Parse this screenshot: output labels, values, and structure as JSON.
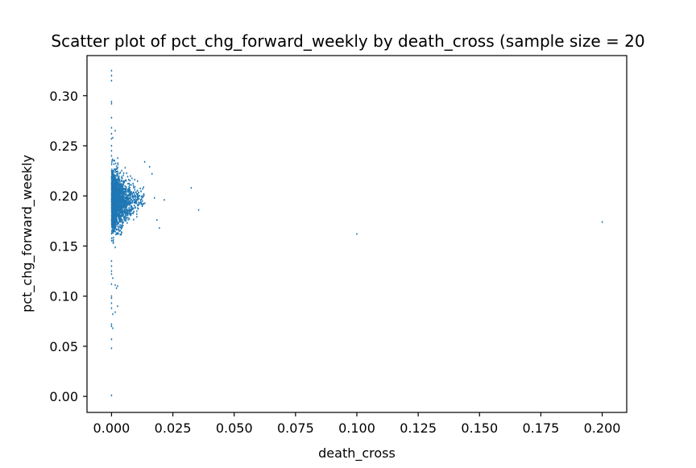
{
  "chart_data": {
    "type": "scatter",
    "title": "Scatter plot of pct_chg_forward_weekly by death_cross (sample size = 20",
    "xlabel": "death_cross",
    "ylabel": "pct_chg_forward_weekly",
    "xlim": [
      -0.01,
      0.21
    ],
    "ylim": [
      -0.016,
      0.34
    ],
    "x_ticks": [
      0.0,
      0.025,
      0.05,
      0.075,
      0.1,
      0.125,
      0.15,
      0.175,
      0.2
    ],
    "x_tick_labels": [
      "0.000",
      "0.025",
      "0.050",
      "0.075",
      "0.100",
      "0.125",
      "0.150",
      "0.175",
      "0.200"
    ],
    "y_ticks": [
      0.0,
      0.05,
      0.1,
      0.15,
      0.2,
      0.25,
      0.3
    ],
    "y_tick_labels": [
      "0.00",
      "0.05",
      "0.10",
      "0.15",
      "0.20",
      "0.25",
      "0.30"
    ],
    "grid": false,
    "marker_color": "#1f77b4",
    "series": [
      {
        "outliers": [
          [
            0.0,
            0.325
          ],
          [
            0.0,
            0.32
          ],
          [
            0.0,
            0.315
          ],
          [
            0.0,
            0.294
          ],
          [
            0.0,
            0.292
          ],
          [
            0.0,
            0.278
          ],
          [
            0.0,
            0.268
          ],
          [
            0.0,
            0.262
          ],
          [
            0.0,
            0.257
          ],
          [
            0.0,
            0.25
          ],
          [
            0.0,
            0.245
          ],
          [
            0.0,
            0.24
          ],
          [
            0.0015,
            0.265
          ],
          [
            0.0005,
            0.258
          ],
          [
            0.0,
            0.135
          ],
          [
            0.0,
            0.13
          ],
          [
            0.0,
            0.125
          ],
          [
            0.0,
            0.122
          ],
          [
            0.0005,
            0.118
          ],
          [
            0.0,
            0.112
          ],
          [
            0.0015,
            0.111
          ],
          [
            0.002,
            0.108
          ],
          [
            0.0025,
            0.11
          ],
          [
            0.0,
            0.1
          ],
          [
            0.0,
            0.098
          ],
          [
            0.0,
            0.093
          ],
          [
            0.0,
            0.088
          ],
          [
            0.0025,
            0.09
          ],
          [
            0.0015,
            0.084
          ],
          [
            0.0005,
            0.082
          ],
          [
            0.0,
            0.072
          ],
          [
            0.0,
            0.07
          ],
          [
            0.0005,
            0.068
          ],
          [
            0.0,
            0.057
          ],
          [
            0.0,
            0.048
          ],
          [
            0.0,
            0.001
          ],
          [
            0.0135,
            0.234
          ],
          [
            0.0155,
            0.229
          ],
          [
            0.0165,
            0.222
          ],
          [
            0.0175,
            0.198
          ],
          [
            0.0185,
            0.176
          ],
          [
            0.0195,
            0.168
          ],
          [
            0.0215,
            0.196
          ],
          [
            0.0325,
            0.208
          ],
          [
            0.0355,
            0.186
          ],
          [
            0.1,
            0.162
          ],
          [
            0.2,
            0.174
          ]
        ],
        "cluster": {
          "x_range": [
            0.0,
            0.014
          ],
          "y_center": 0.195,
          "y_spread": 0.028,
          "count": 2000
        }
      }
    ]
  }
}
